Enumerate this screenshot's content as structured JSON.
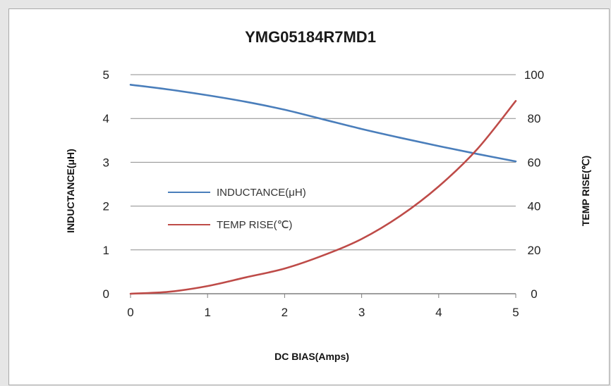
{
  "chart_data": {
    "type": "line",
    "title": "YMG05184R7MD1",
    "xlabel": "DC BIAS(Amps)",
    "ylabel": "INDUCTANCE(μH)",
    "y2label": "TEMP RISE(℃)",
    "xlim": [
      0,
      5
    ],
    "ylim": [
      0,
      5
    ],
    "y2lim": [
      0,
      100
    ],
    "x_ticks": [
      "0",
      "1",
      "2",
      "3",
      "4",
      "5"
    ],
    "y_ticks": [
      "0",
      "1",
      "2",
      "3",
      "4",
      "5"
    ],
    "y2_ticks": [
      "0",
      "20",
      "40",
      "60",
      "80",
      "100"
    ],
    "grid": "horizontal",
    "legend_position": "center-left",
    "series": [
      {
        "name": "INDUCTANCE(μH)",
        "axis": "left",
        "color": "#4a7ebb",
        "x": [
          0,
          0.5,
          1,
          1.5,
          2,
          2.5,
          3,
          3.5,
          4,
          4.5,
          5
        ],
        "y": [
          4.77,
          4.66,
          4.53,
          4.38,
          4.2,
          3.98,
          3.76,
          3.56,
          3.37,
          3.19,
          3.02
        ]
      },
      {
        "name": "TEMP RISE(℃)",
        "axis": "right",
        "color": "#be4b48",
        "x": [
          0,
          0.5,
          1,
          1.5,
          2,
          2.5,
          3,
          3.5,
          4,
          4.5,
          5
        ],
        "y": [
          0,
          0.9,
          3.5,
          7.5,
          11.5,
          17.5,
          25,
          35.5,
          49,
          66,
          88
        ]
      }
    ]
  }
}
